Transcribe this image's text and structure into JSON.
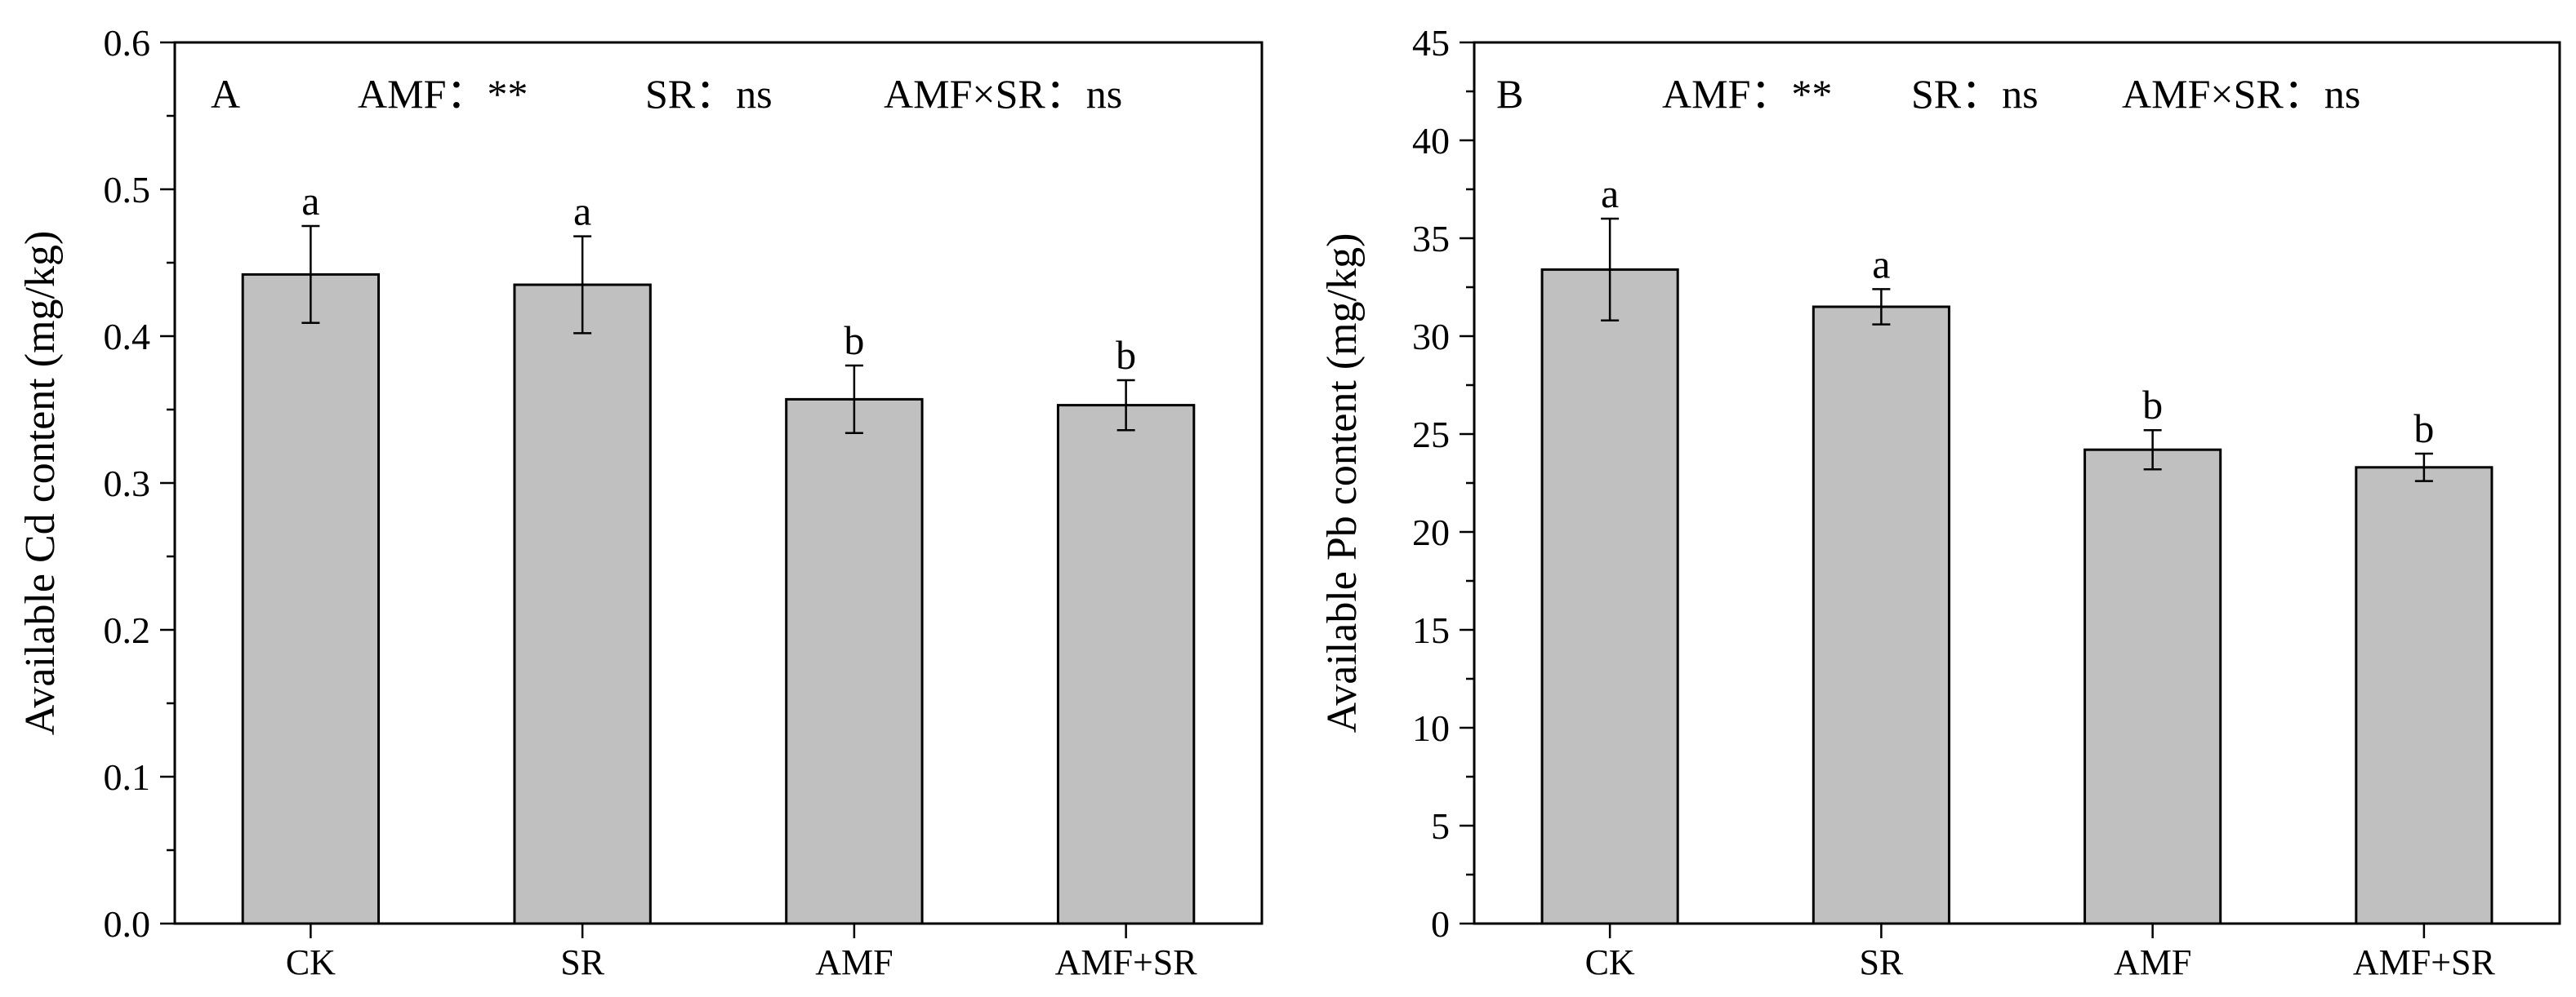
{
  "colors": {
    "bar_fill": "#c0c0c0",
    "bar_stroke": "#000000",
    "axis": "#000000",
    "background": "#ffffff"
  },
  "chart_data": [
    {
      "type": "bar",
      "panel": "A",
      "stats": {
        "amf": "AMF：**",
        "sr": "SR：ns",
        "interaction": "AMF×SR：ns"
      },
      "categories": [
        "CK",
        "SR",
        "AMF",
        "AMF+SR"
      ],
      "values": [
        0.442,
        0.435,
        0.357,
        0.353
      ],
      "errors": [
        0.033,
        0.033,
        0.023,
        0.017
      ],
      "significance": [
        "a",
        "a",
        "b",
        "b"
      ],
      "ylabel": "Available Cd content (mg/kg)",
      "xlabel": "",
      "ylim": [
        0,
        0.6
      ],
      "yticks": [
        0.0,
        0.1,
        0.2,
        0.3,
        0.4,
        0.5,
        0.6
      ],
      "ytick_labels": [
        "0.0",
        "0.1",
        "0.2",
        "0.3",
        "0.4",
        "0.5",
        "0.6"
      ],
      "grid": false
    },
    {
      "type": "bar",
      "panel": "B",
      "stats": {
        "amf": "AMF：**",
        "sr": "SR：ns",
        "interaction": "AMF×SR：ns"
      },
      "categories": [
        "CK",
        "SR",
        "AMF",
        "AMF+SR"
      ],
      "values": [
        33.4,
        31.5,
        24.2,
        23.3
      ],
      "errors": [
        2.6,
        0.9,
        1.0,
        0.7
      ],
      "significance": [
        "a",
        "a",
        "b",
        "b"
      ],
      "ylabel": "Available Pb content (mg/kg)",
      "xlabel": "",
      "ylim": [
        0,
        45
      ],
      "yticks": [
        0,
        5,
        10,
        15,
        20,
        25,
        30,
        35,
        40,
        45
      ],
      "ytick_labels": [
        "0",
        "5",
        "10",
        "15",
        "20",
        "25",
        "30",
        "35",
        "40",
        "45"
      ],
      "grid": false
    }
  ]
}
